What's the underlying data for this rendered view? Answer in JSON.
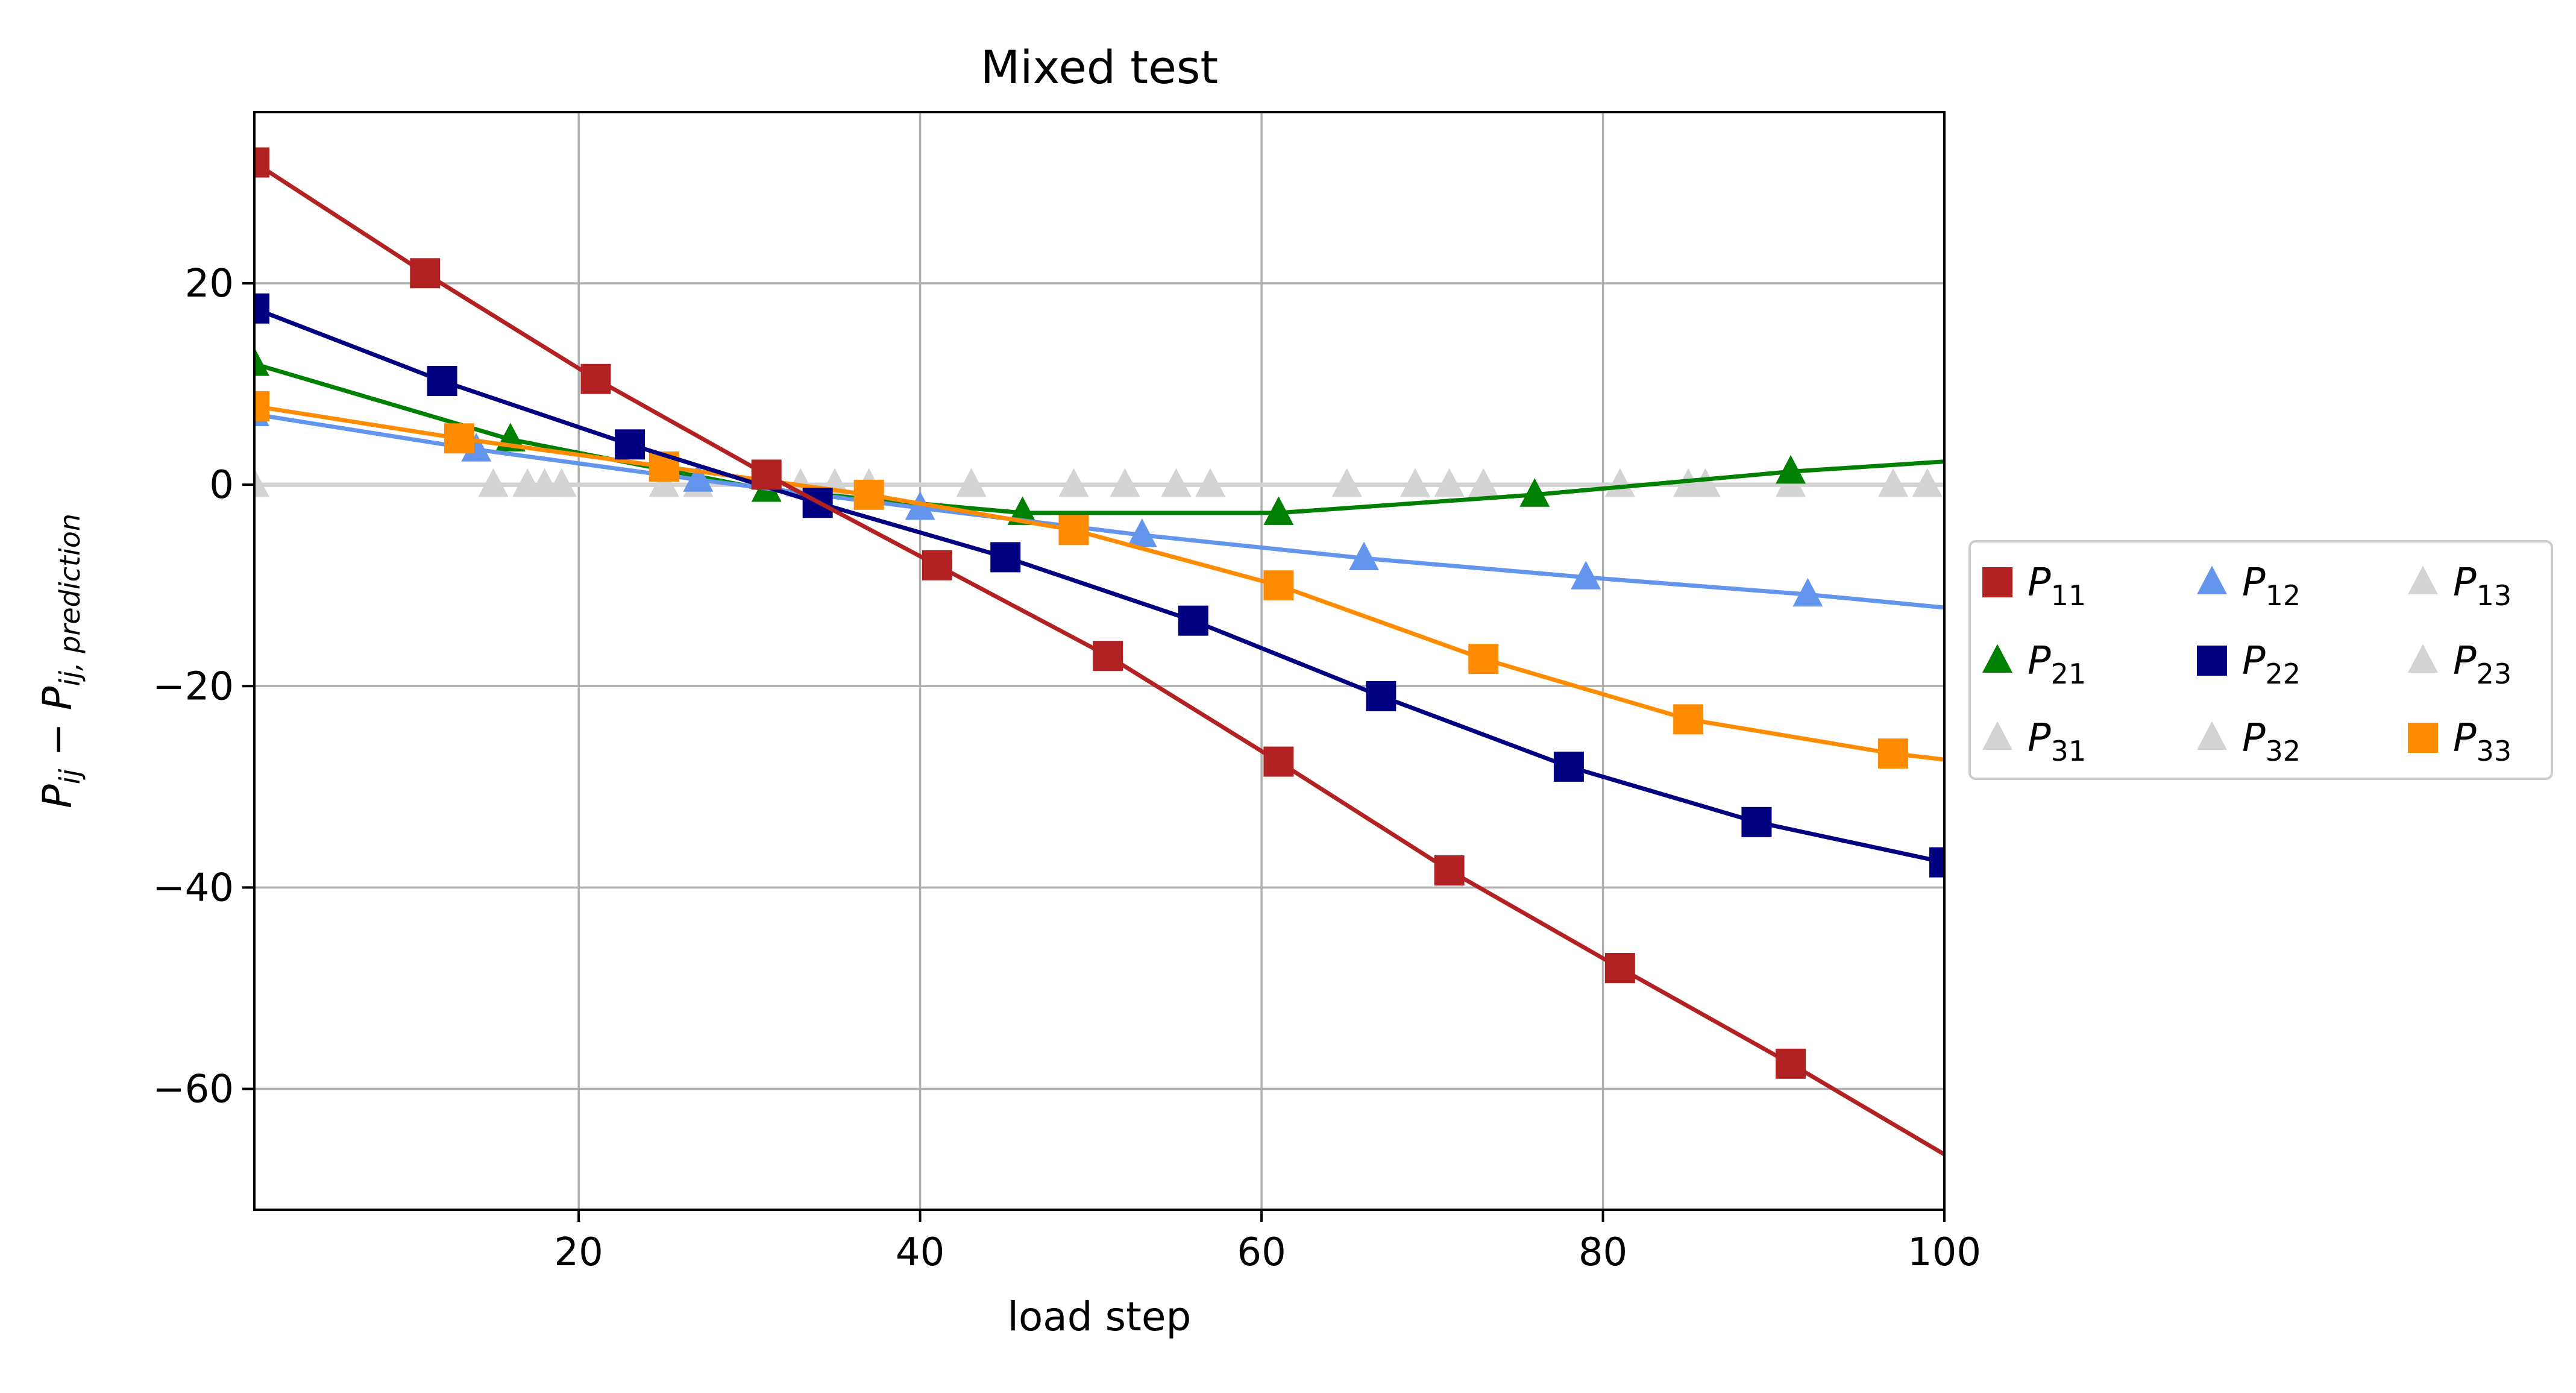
{
  "chart_data": {
    "type": "line",
    "title": "Mixed test",
    "xlabel": "load step",
    "ylabel": {
      "main": "P",
      "sub1": "ij",
      "minus": " − ",
      "main2": "P",
      "sub2": "ij, prediction"
    },
    "xlim": [
      1,
      100
    ],
    "ylim": [
      -72,
      37
    ],
    "x_ticks": [
      20,
      40,
      60,
      80,
      100
    ],
    "x_tick_labels": [
      "20",
      "40",
      "60",
      "80",
      "100"
    ],
    "y_ticks": [
      20,
      0,
      -20,
      -40,
      -60
    ],
    "y_tick_labels": [
      "20",
      "0",
      "−20",
      "−40",
      "−60"
    ],
    "grid": true,
    "legend_placement": "right-outside",
    "series": [
      {
        "name": "P",
        "sub": "11",
        "color": "#b22222",
        "marker": "square",
        "draw_order": 6,
        "line": [
          [
            1,
            32
          ],
          [
            11,
            21
          ],
          [
            21,
            10.5
          ],
          [
            31,
            1
          ],
          [
            41,
            -8
          ],
          [
            51,
            -17
          ],
          [
            61,
            -27.5
          ],
          [
            71,
            -38.3
          ],
          [
            81,
            -48
          ],
          [
            91,
            -57.5
          ],
          [
            100,
            -66.5
          ]
        ],
        "markers": [
          [
            1,
            32
          ],
          [
            11,
            21
          ],
          [
            21,
            10.5
          ],
          [
            31,
            1
          ],
          [
            41,
            -8
          ],
          [
            51,
            -17
          ],
          [
            61,
            -27.5
          ],
          [
            71,
            -38.3
          ],
          [
            81,
            -48
          ],
          [
            91,
            -57.5
          ]
        ]
      },
      {
        "name": "P",
        "sub": "21",
        "color": "#008000",
        "marker": "triangle",
        "draw_order": 2,
        "line": [
          [
            1,
            12
          ],
          [
            16,
            4.5
          ],
          [
            31,
            -0.5
          ],
          [
            46,
            -2.8
          ],
          [
            61,
            -2.8
          ],
          [
            76,
            -1
          ],
          [
            91,
            1.3
          ],
          [
            100,
            2.3
          ]
        ],
        "markers": [
          [
            1,
            12
          ],
          [
            16,
            4.5
          ],
          [
            31,
            -0.5
          ],
          [
            46,
            -2.8
          ],
          [
            61,
            -2.8
          ],
          [
            76,
            -1
          ],
          [
            91,
            1.3
          ]
        ]
      },
      {
        "name": "P",
        "sub": "31",
        "color": "#d3d3d3",
        "marker": "triangle",
        "draw_order": 0,
        "line": [
          [
            1,
            0
          ],
          [
            100,
            0
          ]
        ],
        "markers": [
          [
            1,
            0
          ],
          [
            15,
            0
          ],
          [
            17,
            0
          ],
          [
            19,
            0
          ],
          [
            27,
            0
          ],
          [
            35,
            0
          ],
          [
            43,
            0
          ],
          [
            57,
            0
          ],
          [
            65,
            0
          ],
          [
            73,
            0
          ],
          [
            81,
            0
          ],
          [
            91,
            0
          ],
          [
            99,
            0
          ]
        ]
      },
      {
        "name": "P",
        "sub": "12",
        "color": "#6495ed",
        "marker": "triangle",
        "draw_order": 3,
        "line": [
          [
            1,
            7
          ],
          [
            14,
            3.5
          ],
          [
            27,
            0.5
          ],
          [
            40,
            -2.3
          ],
          [
            53,
            -5
          ],
          [
            66,
            -7.3
          ],
          [
            79,
            -9.2
          ],
          [
            92,
            -10.9
          ],
          [
            100,
            -12.2
          ]
        ],
        "markers": [
          [
            1,
            7
          ],
          [
            14,
            3.5
          ],
          [
            27,
            0.5
          ],
          [
            40,
            -2.3
          ],
          [
            53,
            -5
          ],
          [
            66,
            -7.3
          ],
          [
            79,
            -9.2
          ],
          [
            92,
            -10.9
          ]
        ]
      },
      {
        "name": "P",
        "sub": "22",
        "color": "#000080",
        "marker": "square",
        "draw_order": 5,
        "line": [
          [
            1,
            17.5
          ],
          [
            12,
            10.3
          ],
          [
            23,
            4
          ],
          [
            34,
            -1.8
          ],
          [
            45,
            -7.2
          ],
          [
            56,
            -13.5
          ],
          [
            67,
            -21
          ],
          [
            78,
            -28
          ],
          [
            89,
            -33.5
          ],
          [
            100,
            -37.5
          ]
        ],
        "markers": [
          [
            1,
            17.5
          ],
          [
            12,
            10.3
          ],
          [
            23,
            4
          ],
          [
            34,
            -1.8
          ],
          [
            45,
            -7.2
          ],
          [
            56,
            -13.5
          ],
          [
            67,
            -21
          ],
          [
            78,
            -28
          ],
          [
            89,
            -33.5
          ],
          [
            100,
            -37.5
          ]
        ]
      },
      {
        "name": "P",
        "sub": "32",
        "color": "#d3d3d3",
        "marker": "triangle",
        "draw_order": 1,
        "line": [
          [
            1,
            0
          ],
          [
            100,
            0
          ]
        ],
        "markers": [
          [
            18,
            0
          ],
          [
            25,
            0
          ],
          [
            33,
            0
          ],
          [
            37,
            0
          ],
          [
            49,
            0
          ],
          [
            52,
            0
          ],
          [
            55,
            0
          ],
          [
            69,
            0
          ],
          [
            71,
            0
          ],
          [
            85,
            0
          ],
          [
            86,
            0
          ],
          [
            97,
            0
          ]
        ]
      },
      {
        "name": "P",
        "sub": "13",
        "color": "#d3d3d3",
        "marker": "triangle",
        "draw_order": 0,
        "line": [
          [
            1,
            0
          ],
          [
            100,
            0
          ]
        ],
        "markers": []
      },
      {
        "name": "P",
        "sub": "23",
        "color": "#d3d3d3",
        "marker": "triangle",
        "draw_order": 0,
        "line": [
          [
            1,
            0
          ],
          [
            100,
            0
          ]
        ],
        "markers": []
      },
      {
        "name": "P",
        "sub": "33",
        "color": "#ff8c00",
        "marker": "square",
        "draw_order": 4,
        "line": [
          [
            1,
            7.8
          ],
          [
            13,
            4.6
          ],
          [
            25,
            1.8
          ],
          [
            37,
            -1
          ],
          [
            49,
            -4.5
          ],
          [
            61,
            -10
          ],
          [
            73,
            -17.3
          ],
          [
            85,
            -23.3
          ],
          [
            97,
            -26.7
          ],
          [
            100,
            -27.3
          ]
        ],
        "markers": [
          [
            1,
            7.8
          ],
          [
            13,
            4.6
          ],
          [
            25,
            1.8
          ],
          [
            37,
            -1
          ],
          [
            49,
            -4.5
          ],
          [
            61,
            -10
          ],
          [
            73,
            -17.3
          ],
          [
            85,
            -23.3
          ],
          [
            97,
            -26.7
          ]
        ]
      }
    ],
    "legend_order": [
      "11",
      "21",
      "31",
      "12",
      "22",
      "32",
      "13",
      "23",
      "33"
    ]
  }
}
